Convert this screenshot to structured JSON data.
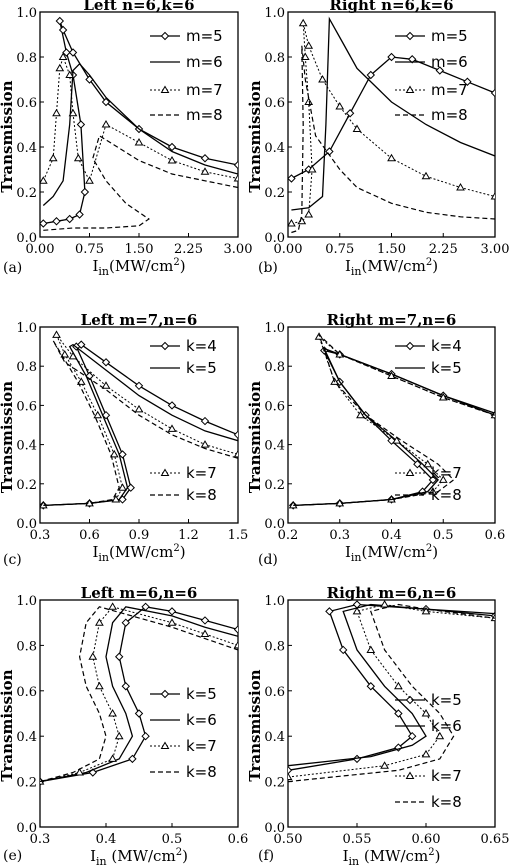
{
  "chart_data": [
    {
      "panel": "(a)",
      "type": "line",
      "title": "Left n=6,k=6",
      "ylabel": "Transmission",
      "xlabel_main": "I",
      "xlabel_sub": "in",
      "xlabel_unit": "(MW/cm",
      "xlabel_sup": "2",
      "xlabel_end": ")",
      "xlim": [
        0,
        3
      ],
      "ylim": [
        0,
        1
      ],
      "xticks": [
        "0.00",
        "0.75",
        "1.50",
        "2.25",
        "3.00"
      ],
      "xtick_vals": [
        0,
        0.75,
        1.5,
        2.25,
        3.0
      ],
      "yticks": [
        "0.0",
        "0.2",
        "0.4",
        "0.6",
        "0.8",
        "1.0"
      ],
      "ytick_vals": [
        0,
        0.2,
        0.4,
        0.6,
        0.8,
        1.0
      ],
      "series": [
        {
          "name": "m=5",
          "style": "diamond",
          "x": [
            0.05,
            0.25,
            0.45,
            0.6,
            0.68,
            0.62,
            0.5,
            0.4,
            0.3,
            0.35,
            0.5,
            0.75,
            1.0,
            1.5,
            2.0,
            2.5,
            3.0
          ],
          "y": [
            0.06,
            0.07,
            0.08,
            0.1,
            0.2,
            0.5,
            0.72,
            0.82,
            0.96,
            0.92,
            0.82,
            0.7,
            0.6,
            0.48,
            0.4,
            0.35,
            0.32
          ]
        },
        {
          "name": "m=6",
          "style": "solid",
          "x": [
            0.05,
            0.2,
            0.35,
            0.45,
            0.5,
            0.6,
            0.75,
            1.0,
            1.5,
            2.0,
            2.5,
            3.0
          ],
          "y": [
            0.14,
            0.18,
            0.25,
            0.5,
            0.74,
            0.77,
            0.72,
            0.62,
            0.48,
            0.38,
            0.32,
            0.28
          ]
        },
        {
          "name": "m=7",
          "style": "triangle",
          "x": [
            0.05,
            0.2,
            0.25,
            0.3,
            0.35,
            0.45,
            0.5,
            0.58,
            0.75,
            1.0,
            1.5,
            2.0,
            2.5,
            3.0
          ],
          "y": [
            0.25,
            0.35,
            0.55,
            0.75,
            0.8,
            0.72,
            0.55,
            0.35,
            0.25,
            0.5,
            0.42,
            0.34,
            0.29,
            0.26
          ]
        },
        {
          "name": "m=8",
          "style": "dashed",
          "x": [
            0.05,
            0.5,
            1.0,
            1.5,
            1.65,
            1.6,
            1.3,
            1.0,
            0.8,
            0.9,
            1.5,
            2.0,
            2.5,
            3.0
          ],
          "y": [
            0.03,
            0.04,
            0.04,
            0.05,
            0.08,
            0.09,
            0.15,
            0.25,
            0.35,
            0.45,
            0.34,
            0.28,
            0.25,
            0.22
          ]
        }
      ]
    },
    {
      "panel": "(b)",
      "type": "line",
      "title": "Right n=6,k=6",
      "ylabel": "Transmission",
      "xlabel_main": "I",
      "xlabel_sub": "in",
      "xlabel_unit": "(MW/cm",
      "xlabel_sup": "2",
      "xlabel_end": ")",
      "xlim": [
        0,
        3
      ],
      "ylim": [
        0,
        1
      ],
      "xticks": [
        "0.00",
        "0.75",
        "1.50",
        "2.25",
        "3.00"
      ],
      "xtick_vals": [
        0,
        0.75,
        1.5,
        2.25,
        3.0
      ],
      "yticks": [
        "0.0",
        "0.2",
        "0.4",
        "0.6",
        "0.8",
        "1.0"
      ],
      "ytick_vals": [
        0,
        0.2,
        0.4,
        0.6,
        0.8,
        1.0
      ],
      "series": [
        {
          "name": "m=5",
          "style": "diamond",
          "x": [
            0.05,
            0.3,
            0.6,
            0.9,
            1.2,
            1.5,
            1.8,
            2.2,
            2.6,
            3.0
          ],
          "y": [
            0.26,
            0.3,
            0.38,
            0.55,
            0.72,
            0.8,
            0.79,
            0.74,
            0.69,
            0.64
          ]
        },
        {
          "name": "m=6",
          "style": "solid",
          "x": [
            0.05,
            0.3,
            0.5,
            0.55,
            0.6,
            0.8,
            1.0,
            1.5,
            2.0,
            2.5,
            3.0
          ],
          "y": [
            0.12,
            0.13,
            0.18,
            0.5,
            0.97,
            0.86,
            0.75,
            0.6,
            0.5,
            0.42,
            0.36
          ]
        },
        {
          "name": "m=7",
          "style": "triangle",
          "x": [
            0.05,
            0.2,
            0.3,
            0.35,
            0.3,
            0.25,
            0.22,
            0.3,
            0.5,
            0.75,
            1.0,
            1.5,
            2.0,
            2.5,
            3.0
          ],
          "y": [
            0.06,
            0.07,
            0.1,
            0.3,
            0.6,
            0.8,
            0.95,
            0.85,
            0.7,
            0.58,
            0.48,
            0.35,
            0.27,
            0.22,
            0.18
          ]
        },
        {
          "name": "m=8",
          "style": "dashed",
          "x": [
            0.05,
            0.15,
            0.2,
            0.22,
            0.2,
            0.25,
            0.4,
            0.75,
            1.0,
            1.5,
            2.0,
            2.5,
            3.0
          ],
          "y": [
            0.02,
            0.03,
            0.1,
            0.5,
            0.85,
            0.7,
            0.45,
            0.3,
            0.22,
            0.15,
            0.11,
            0.09,
            0.08
          ]
        }
      ]
    },
    {
      "panel": "(c)",
      "type": "line",
      "title": "Left  m=7,n=6",
      "ylabel": "Transmission",
      "xlabel_main": "I",
      "xlabel_sub": "in",
      "xlabel_unit": "(MW/cm",
      "xlabel_sup": "2",
      "xlabel_end": ")",
      "xlim": [
        0.3,
        1.5
      ],
      "ylim": [
        0,
        1
      ],
      "xticks": [
        "0.3",
        "0.6",
        "0.9",
        "1.2",
        "1.5"
      ],
      "xtick_vals": [
        0.3,
        0.6,
        0.9,
        1.2,
        1.5
      ],
      "yticks": [
        "0.0",
        "0.2",
        "0.4",
        "0.6",
        "0.8",
        "1.0"
      ],
      "ytick_vals": [
        0,
        0.2,
        0.4,
        0.6,
        0.8,
        1.0
      ],
      "series": [
        {
          "name": "k=4",
          "style": "diamond",
          "x": [
            0.32,
            0.6,
            0.8,
            0.85,
            0.8,
            0.7,
            0.6,
            0.52,
            0.55,
            0.7,
            0.9,
            1.1,
            1.3,
            1.5
          ],
          "y": [
            0.09,
            0.1,
            0.12,
            0.18,
            0.35,
            0.55,
            0.75,
            0.9,
            0.91,
            0.82,
            0.7,
            0.6,
            0.52,
            0.45
          ]
        },
        {
          "name": "k=5",
          "style": "solid",
          "x": [
            0.32,
            0.6,
            0.78,
            0.83,
            0.78,
            0.68,
            0.58,
            0.48,
            0.5,
            0.7,
            0.9,
            1.1,
            1.3,
            1.5
          ],
          "y": [
            0.09,
            0.1,
            0.12,
            0.18,
            0.35,
            0.55,
            0.75,
            0.9,
            0.91,
            0.78,
            0.65,
            0.55,
            0.47,
            0.42
          ]
        },
        {
          "name": "k=7",
          "style": "triangle",
          "x": [
            0.32,
            0.6,
            0.76,
            0.8,
            0.75,
            0.65,
            0.55,
            0.45,
            0.4,
            0.5,
            0.7,
            0.9,
            1.1,
            1.3,
            1.5
          ],
          "y": [
            0.09,
            0.1,
            0.12,
            0.18,
            0.35,
            0.55,
            0.72,
            0.86,
            0.96,
            0.85,
            0.7,
            0.58,
            0.48,
            0.4,
            0.35
          ]
        },
        {
          "name": "k=8",
          "style": "dashed",
          "x": [
            0.32,
            0.6,
            0.74,
            0.78,
            0.73,
            0.63,
            0.53,
            0.43,
            0.38,
            0.45,
            0.7,
            0.9,
            1.1,
            1.3,
            1.5
          ],
          "y": [
            0.09,
            0.1,
            0.12,
            0.18,
            0.35,
            0.55,
            0.72,
            0.86,
            0.93,
            0.82,
            0.68,
            0.55,
            0.45,
            0.38,
            0.33
          ]
        }
      ]
    },
    {
      "panel": "(d)",
      "type": "line",
      "title": "Right m=7,n=6",
      "ylabel": "Transmission",
      "xlabel_main": "I",
      "xlabel_sub": "in",
      "xlabel_unit": "(MW/cm",
      "xlabel_sup": "2",
      "xlabel_end": ")",
      "xlim": [
        0.2,
        0.6
      ],
      "ylim": [
        0,
        1
      ],
      "xticks": [
        "0.2",
        "0.3",
        "0.4",
        "0.5",
        "0.6"
      ],
      "xtick_vals": [
        0.2,
        0.3,
        0.4,
        0.5,
        0.6
      ],
      "yticks": [
        "0.0",
        "0.2",
        "0.4",
        "0.6",
        "0.8",
        "1.0"
      ],
      "ytick_vals": [
        0,
        0.2,
        0.4,
        0.6,
        0.8,
        1.0
      ],
      "series": [
        {
          "name": "k=4",
          "style": "diamond",
          "x": [
            0.21,
            0.3,
            0.4,
            0.46,
            0.48,
            0.45,
            0.4,
            0.35,
            0.3,
            0.27,
            0.3,
            0.4,
            0.5,
            0.6
          ],
          "y": [
            0.09,
            0.1,
            0.12,
            0.16,
            0.22,
            0.3,
            0.42,
            0.55,
            0.72,
            0.88,
            0.86,
            0.76,
            0.65,
            0.55
          ]
        },
        {
          "name": "k=5",
          "style": "solid",
          "x": [
            0.21,
            0.3,
            0.4,
            0.47,
            0.49,
            0.46,
            0.41,
            0.35,
            0.3,
            0.27,
            0.3,
            0.4,
            0.5,
            0.6
          ],
          "y": [
            0.09,
            0.1,
            0.12,
            0.16,
            0.22,
            0.3,
            0.42,
            0.55,
            0.72,
            0.89,
            0.86,
            0.76,
            0.65,
            0.56
          ]
        },
        {
          "name": "k=7",
          "style": "triangle",
          "x": [
            0.21,
            0.3,
            0.4,
            0.48,
            0.5,
            0.47,
            0.41,
            0.34,
            0.29,
            0.26,
            0.3,
            0.4,
            0.5,
            0.6
          ],
          "y": [
            0.09,
            0.1,
            0.12,
            0.16,
            0.22,
            0.3,
            0.42,
            0.55,
            0.72,
            0.95,
            0.86,
            0.75,
            0.64,
            0.55
          ]
        },
        {
          "name": "k=8",
          "style": "dashed",
          "x": [
            0.21,
            0.3,
            0.4,
            0.49,
            0.52,
            0.49,
            0.42,
            0.35,
            0.29,
            0.26,
            0.3,
            0.4,
            0.5,
            0.6
          ],
          "y": [
            0.09,
            0.1,
            0.12,
            0.16,
            0.22,
            0.3,
            0.42,
            0.55,
            0.72,
            0.96,
            0.86,
            0.75,
            0.64,
            0.55
          ]
        }
      ]
    },
    {
      "panel": "(e)",
      "type": "line",
      "title": "Left m=6,n=6",
      "ylabel": "Transmission",
      "xlabel_main": "I",
      "xlabel_sub": "in",
      "xlabel_unit": " (MW/cm",
      "xlabel_sup": "2",
      "xlabel_end": ")",
      "xlim": [
        0.3,
        0.6
      ],
      "ylim": [
        0.0,
        1.0
      ],
      "xticks": [
        "0.3",
        "0.4",
        "0.5",
        "0.6"
      ],
      "xtick_vals": [
        0.3,
        0.4,
        0.5,
        0.6
      ],
      "yticks": [
        "0.0",
        "0.2",
        "0.4",
        "0.6",
        "0.8",
        "1.0"
      ],
      "ytick_vals": [
        0,
        0.2,
        0.4,
        0.6,
        0.8,
        1.0
      ],
      "series": [
        {
          "name": "k=5",
          "style": "diamond",
          "x": [
            0.3,
            0.38,
            0.44,
            0.46,
            0.45,
            0.43,
            0.42,
            0.43,
            0.46,
            0.5,
            0.55,
            0.6
          ],
          "y": [
            0.2,
            0.24,
            0.3,
            0.4,
            0.5,
            0.62,
            0.75,
            0.9,
            0.97,
            0.95,
            0.91,
            0.87
          ]
        },
        {
          "name": "k=6",
          "style": "solid",
          "x": [
            0.3,
            0.37,
            0.42,
            0.44,
            0.43,
            0.41,
            0.4,
            0.41,
            0.43,
            0.5,
            0.55,
            0.6
          ],
          "y": [
            0.2,
            0.24,
            0.3,
            0.4,
            0.5,
            0.62,
            0.75,
            0.9,
            0.97,
            0.93,
            0.88,
            0.84
          ]
        },
        {
          "name": "k=7",
          "style": "triangle",
          "x": [
            0.3,
            0.36,
            0.41,
            0.42,
            0.41,
            0.39,
            0.38,
            0.39,
            0.41,
            0.5,
            0.55,
            0.6
          ],
          "y": [
            0.2,
            0.24,
            0.3,
            0.4,
            0.5,
            0.62,
            0.75,
            0.9,
            0.97,
            0.9,
            0.85,
            0.8
          ]
        },
        {
          "name": "k=8",
          "style": "dashed",
          "x": [
            0.3,
            0.35,
            0.39,
            0.4,
            0.39,
            0.37,
            0.36,
            0.37,
            0.39,
            0.5,
            0.55,
            0.6
          ],
          "y": [
            0.2,
            0.24,
            0.3,
            0.4,
            0.5,
            0.62,
            0.75,
            0.9,
            0.97,
            0.88,
            0.83,
            0.78
          ]
        }
      ]
    },
    {
      "panel": "(f)",
      "type": "line",
      "title": "Right  m=6,n=6",
      "ylabel": "Transmission",
      "xlabel_main": "I",
      "xlabel_sub": "in",
      "xlabel_unit": " (MW/cm",
      "xlabel_sup": "2",
      "xlabel_end": ")",
      "xlim": [
        0.5,
        0.65
      ],
      "ylim": [
        0.0,
        1.0
      ],
      "xticks": [
        "0.50",
        "0.55",
        "0.60",
        "0.65"
      ],
      "xtick_vals": [
        0.5,
        0.55,
        0.6,
        0.65
      ],
      "yticks": [
        "0.0",
        "0.2",
        "0.4",
        "0.6",
        "0.8",
        "1.0"
      ],
      "ytick_vals": [
        0,
        0.2,
        0.4,
        0.6,
        0.8,
        1.0
      ],
      "series": [
        {
          "name": "k=5",
          "style": "diamond",
          "x": [
            0.5,
            0.55,
            0.58,
            0.59,
            0.58,
            0.56,
            0.54,
            0.53,
            0.55,
            0.6,
            0.65
          ],
          "y": [
            0.25,
            0.3,
            0.35,
            0.4,
            0.5,
            0.62,
            0.78,
            0.95,
            0.98,
            0.96,
            0.93
          ]
        },
        {
          "name": "k=6",
          "style": "solid",
          "x": [
            0.5,
            0.56,
            0.59,
            0.6,
            0.59,
            0.57,
            0.55,
            0.54,
            0.56,
            0.6,
            0.65
          ],
          "y": [
            0.27,
            0.31,
            0.36,
            0.4,
            0.5,
            0.62,
            0.78,
            0.95,
            0.98,
            0.96,
            0.94
          ]
        },
        {
          "name": "k=7",
          "style": "triangle",
          "x": [
            0.5,
            0.57,
            0.6,
            0.61,
            0.6,
            0.58,
            0.56,
            0.55,
            0.57,
            0.6,
            0.65
          ],
          "y": [
            0.22,
            0.27,
            0.32,
            0.4,
            0.5,
            0.62,
            0.78,
            0.95,
            0.98,
            0.95,
            0.92
          ]
        },
        {
          "name": "k=8",
          "style": "dashed",
          "x": [
            0.5,
            0.58,
            0.61,
            0.62,
            0.61,
            0.59,
            0.57,
            0.56,
            0.58,
            0.6,
            0.65
          ],
          "y": [
            0.2,
            0.25,
            0.3,
            0.4,
            0.5,
            0.62,
            0.78,
            0.95,
            0.98,
            0.96,
            0.92
          ]
        }
      ]
    }
  ]
}
